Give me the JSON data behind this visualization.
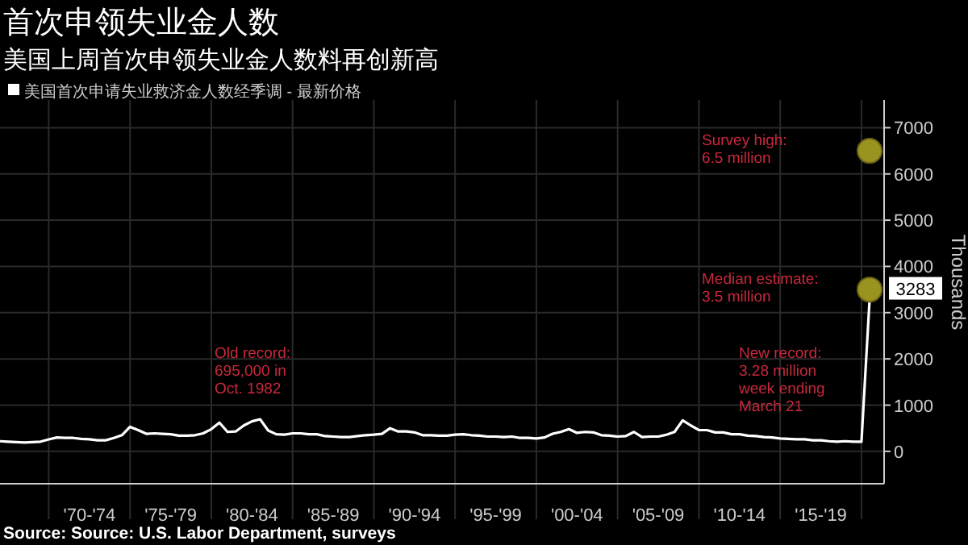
{
  "chart_data": {
    "type": "line",
    "title": "首次申领失业金人数",
    "subtitle": "美国上周首次申领失业金人数料再创新高",
    "ylabel": "Thousands",
    "categories": [
      null,
      null,
      null,
      null,
      null,
      null,
      null,
      null,
      null,
      null,
      null,
      "'70-'74",
      null,
      null,
      null,
      null,
      null,
      null,
      null,
      null,
      null,
      "'75-'79",
      null,
      null,
      null,
      null,
      null,
      null,
      null,
      null,
      null,
      "'80-'84",
      null,
      null,
      null,
      null,
      null,
      null,
      null,
      null,
      null,
      "'85-'89",
      null,
      null,
      null,
      null,
      null,
      null,
      null,
      null,
      null,
      "'90-'94",
      null,
      null,
      null,
      null,
      null,
      null,
      null,
      null,
      null,
      "'95-'99",
      null,
      null,
      null,
      null,
      null,
      null,
      null,
      null,
      null,
      "'00-'04",
      null,
      null,
      null,
      null,
      null,
      null,
      null,
      null,
      null,
      "'05-'09",
      null,
      null,
      null,
      null,
      null,
      null,
      null,
      null,
      null,
      "'10-'14",
      null,
      null,
      null,
      null,
      null,
      null,
      null,
      null,
      null,
      "'15-'19",
      null,
      null,
      null,
      null,
      null,
      null
    ],
    "ylim": [
      -700,
      7600
    ],
    "yticks": [
      0,
      1000,
      2000,
      3000,
      4000,
      5000,
      6000,
      7000
    ],
    "grid": true,
    "legend": "top left",
    "series": [
      {
        "name": "美国首次申请失业救济金人数经季调 - 最新价格",
        "color": "#ffffff",
        "values": [
          220,
          210,
          200,
          190,
          200,
          210,
          260,
          300,
          290,
          290,
          270,
          260,
          240,
          240,
          290,
          350,
          530,
          460,
          380,
          390,
          380,
          370,
          340,
          340,
          350,
          390,
          480,
          620,
          420,
          430,
          560,
          650,
          695,
          450,
          370,
          360,
          390,
          390,
          370,
          370,
          330,
          320,
          310,
          310,
          330,
          350,
          360,
          380,
          500,
          430,
          430,
          410,
          350,
          350,
          340,
          340,
          360,
          370,
          350,
          340,
          320,
          320,
          310,
          320,
          290,
          290,
          280,
          300,
          380,
          420,
          480,
          400,
          420,
          410,
          350,
          340,
          320,
          330,
          420,
          310,
          320,
          320,
          360,
          420,
          670,
          560,
          460,
          460,
          410,
          410,
          370,
          370,
          340,
          330,
          310,
          300,
          280,
          270,
          260,
          260,
          240,
          240,
          220,
          210,
          220,
          210,
          210,
          3283
        ],
        "value_labels": [
          null,
          null,
          null,
          null,
          null,
          null,
          null,
          null,
          null,
          null,
          null,
          null,
          null,
          null,
          null,
          null,
          null,
          null,
          null,
          null,
          null,
          null,
          null,
          null,
          null,
          null,
          null,
          null,
          null,
          null,
          null,
          null,
          null,
          null,
          null,
          null,
          null,
          null,
          null,
          null,
          null,
          null,
          null,
          null,
          null,
          null,
          null,
          null,
          null,
          null,
          null,
          null,
          null,
          null,
          null,
          null,
          null,
          null,
          null,
          null,
          null,
          null,
          null,
          null,
          null,
          null,
          null,
          null,
          null,
          null,
          null,
          null,
          null,
          null,
          null,
          null,
          null,
          null,
          null,
          null,
          null,
          null,
          null,
          null,
          null,
          null,
          null,
          null,
          null,
          null,
          null,
          null,
          null,
          null,
          null,
          null,
          null,
          null,
          null,
          null,
          null,
          null,
          null,
          null,
          null,
          null,
          null,
          "3283"
        ]
      },
      {
        "type": "scatter",
        "color": "#9b9320",
        "marker": "circle",
        "values": [
          null,
          null,
          null,
          null,
          null,
          null,
          null,
          null,
          null,
          null,
          null,
          null,
          null,
          null,
          null,
          null,
          null,
          null,
          null,
          null,
          null,
          null,
          null,
          null,
          null,
          null,
          null,
          null,
          null,
          null,
          null,
          null,
          null,
          null,
          null,
          null,
          null,
          null,
          null,
          null,
          null,
          null,
          null,
          null,
          null,
          null,
          null,
          null,
          null,
          null,
          null,
          null,
          null,
          null,
          null,
          null,
          null,
          null,
          null,
          null,
          null,
          null,
          null,
          null,
          null,
          null,
          null,
          null,
          null,
          null,
          null,
          null,
          null,
          null,
          null,
          null,
          null,
          null,
          null,
          null,
          null,
          null,
          null,
          null,
          null,
          null,
          null,
          null,
          null,
          null,
          null,
          null,
          null,
          null,
          null,
          null,
          null,
          null,
          null,
          null,
          null,
          null,
          null,
          null,
          null,
          null,
          null,
          6500
        ]
      },
      {
        "type": "scatter",
        "color": "#9b9320",
        "marker": "circle",
        "values": [
          null,
          null,
          null,
          null,
          null,
          null,
          null,
          null,
          null,
          null,
          null,
          null,
          null,
          null,
          null,
          null,
          null,
          null,
          null,
          null,
          null,
          null,
          null,
          null,
          null,
          null,
          null,
          null,
          null,
          null,
          null,
          null,
          null,
          null,
          null,
          null,
          null,
          null,
          null,
          null,
          null,
          null,
          null,
          null,
          null,
          null,
          null,
          null,
          null,
          null,
          null,
          null,
          null,
          null,
          null,
          null,
          null,
          null,
          null,
          null,
          null,
          null,
          null,
          null,
          null,
          null,
          null,
          null,
          null,
          null,
          null,
          null,
          null,
          null,
          null,
          null,
          null,
          null,
          null,
          null,
          null,
          null,
          null,
          null,
          null,
          null,
          null,
          null,
          null,
          null,
          null,
          null,
          null,
          null,
          null,
          null,
          null,
          null,
          null,
          null,
          null,
          null,
          null,
          null,
          null,
          null,
          null,
          3500
        ]
      }
    ],
    "annotations": [
      "Old record:\n695,000 in\nOct. 1982",
      "Survey high:\n6.5 million",
      "Median estimate:\n3.5 million",
      "New record:\n3.28 million\nweek ending\nMarch 21",
      "Source: Source: U.S. Labor Department, surveys"
    ]
  }
}
